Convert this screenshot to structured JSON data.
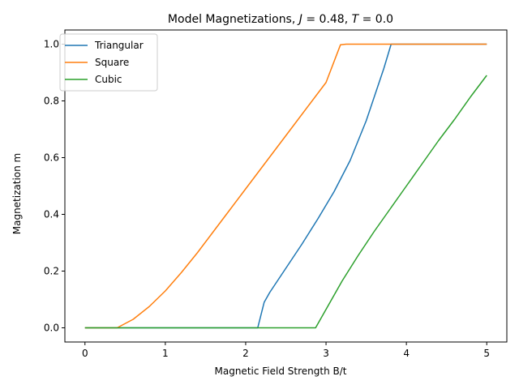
{
  "chart_data": {
    "type": "line",
    "title": "Model Magnetizations, J = 0.48, T = 0.0",
    "title_parts": {
      "prefix": "Model Magnetizations, ",
      "j_symbol": "J",
      "j_value": " = 0.48, ",
      "t_symbol": "T",
      "t_value": " = 0.0"
    },
    "xlabel": "Magnetic Field Strength B/t",
    "ylabel": "Magnetization m",
    "xlim": [
      -0.25,
      5.25
    ],
    "ylim": [
      -0.05,
      1.05
    ],
    "xticks": [
      0,
      1,
      2,
      3,
      4,
      5
    ],
    "xtick_labels": [
      "0",
      "1",
      "2",
      "3",
      "4",
      "5"
    ],
    "yticks": [
      0.0,
      0.2,
      0.4,
      0.6,
      0.8,
      1.0
    ],
    "ytick_labels": [
      "0.0",
      "0.2",
      "0.4",
      "0.6",
      "0.8",
      "1.0"
    ],
    "grid": false,
    "legend_position": "top-left",
    "series": [
      {
        "name": "Triangular",
        "color": "#1f77b4",
        "x": [
          0,
          2.15,
          2.23,
          2.3,
          2.5,
          2.7,
          2.9,
          3.1,
          3.3,
          3.5,
          3.72,
          3.81,
          4.0,
          4.5,
          5.0
        ],
        "y": [
          0,
          0,
          0.09,
          0.125,
          0.21,
          0.295,
          0.385,
          0.48,
          0.59,
          0.73,
          0.915,
          1.0,
          1.0,
          1.0,
          1.0
        ]
      },
      {
        "name": "Square",
        "color": "#ff7f0e",
        "x": [
          0,
          0.4,
          0.6,
          0.8,
          1.0,
          1.2,
          1.4,
          1.6,
          1.8,
          2.0,
          2.2,
          2.4,
          2.6,
          2.8,
          3.0,
          3.18,
          3.25,
          3.5,
          4.0,
          4.5,
          5.0
        ],
        "y": [
          0,
          0,
          0.03,
          0.075,
          0.13,
          0.195,
          0.265,
          0.34,
          0.415,
          0.49,
          0.565,
          0.64,
          0.715,
          0.79,
          0.865,
          0.998,
          1.0,
          1.0,
          1.0,
          1.0,
          1.0
        ]
      },
      {
        "name": "Cubic",
        "color": "#2ca02c",
        "x": [
          0,
          2.87,
          2.95,
          3.0,
          3.2,
          3.4,
          3.6,
          3.8,
          4.0,
          4.2,
          4.4,
          4.6,
          4.8,
          5.0
        ],
        "y": [
          0,
          0,
          0.04,
          0.065,
          0.165,
          0.255,
          0.34,
          0.42,
          0.5,
          0.58,
          0.66,
          0.735,
          0.815,
          0.89
        ]
      }
    ]
  }
}
